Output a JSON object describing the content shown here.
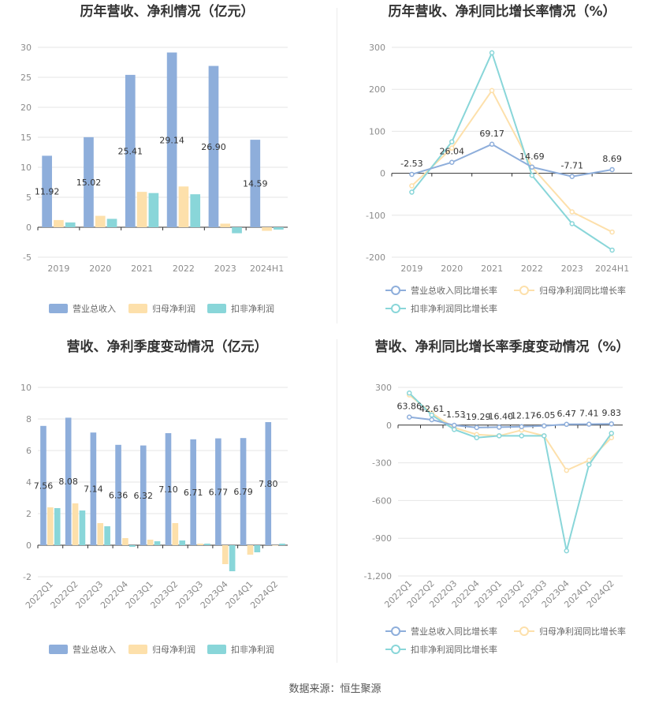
{
  "colors": {
    "revenue": "#8eaedb",
    "net_profit": "#fde0ab",
    "deducted_profit": "#89d6d9",
    "grid": "#e6e6e6",
    "axis": "#333333",
    "title": "#333333",
    "tick": "#8c8c8c"
  },
  "source_text": "数据来源：恒生聚源",
  "chart_data": [
    {
      "type": "bar",
      "title": "历年营收、净利情况（亿元）",
      "categories": [
        "2019",
        "2020",
        "2021",
        "2022",
        "2023",
        "2024H1"
      ],
      "ylim": [
        -5,
        30
      ],
      "yticks": [
        -5,
        0,
        5,
        10,
        15,
        20,
        25,
        30
      ],
      "series": [
        {
          "name": "营业总收入",
          "values": [
            11.92,
            15.02,
            25.41,
            29.14,
            26.9,
            14.59
          ],
          "labels": [
            "11.92",
            "15.02",
            "25.41",
            "29.14",
            "26.90",
            "14.59"
          ]
        },
        {
          "name": "归母净利润",
          "values": [
            1.2,
            1.9,
            5.9,
            6.8,
            0.6,
            -0.6
          ]
        },
        {
          "name": "扣非净利润",
          "values": [
            0.8,
            1.4,
            5.7,
            5.5,
            -1.0,
            -0.4
          ]
        }
      ],
      "legend": "bottom"
    },
    {
      "type": "line",
      "title": "历年营收、净利同比增长率情况（%）",
      "categories": [
        "2019",
        "2020",
        "2021",
        "2022",
        "2023",
        "2024H1"
      ],
      "ylim": [
        -200,
        300
      ],
      "yticks": [
        -200,
        -100,
        0,
        100,
        200,
        300
      ],
      "series": [
        {
          "name": "营业总收入同比增长率",
          "values": [
            -2.53,
            26.04,
            69.17,
            14.69,
            -7.71,
            8.69
          ],
          "labels": [
            "-2.53",
            "26.04",
            "69.17",
            "14.69",
            "-7.71",
            "8.69"
          ]
        },
        {
          "name": "归母净利润同比增长率",
          "values": [
            -30,
            60,
            197,
            15,
            -92,
            -140
          ]
        },
        {
          "name": "扣非净利润同比增长率",
          "values": [
            -45,
            75,
            287,
            -5,
            -120,
            -183
          ]
        }
      ],
      "legend": "bottom"
    },
    {
      "type": "bar",
      "title": "营收、净利季度变动情况（亿元）",
      "categories": [
        "2022Q1",
        "2022Q2",
        "2022Q3",
        "2022Q4",
        "2023Q1",
        "2023Q2",
        "2023Q3",
        "2023Q4",
        "2024Q1",
        "2024Q2"
      ],
      "ylim": [
        -2,
        10
      ],
      "yticks": [
        -2,
        0,
        2,
        4,
        6,
        8,
        10
      ],
      "series": [
        {
          "name": "营业总收入",
          "values": [
            7.56,
            8.08,
            7.14,
            6.36,
            6.32,
            7.1,
            6.71,
            6.77,
            6.79,
            7.8
          ],
          "labels": [
            "7.56",
            "8.08",
            "7.14",
            "6.36",
            "6.32",
            "7.10",
            "6.71",
            "6.77",
            "6.79",
            "7.80"
          ]
        },
        {
          "name": "归母净利润",
          "values": [
            2.4,
            2.65,
            1.4,
            0.45,
            0.35,
            1.4,
            0.1,
            -1.2,
            -0.6,
            0.0
          ]
        },
        {
          "name": "扣非净利润",
          "values": [
            2.35,
            2.2,
            1.2,
            -0.1,
            0.25,
            0.3,
            0.1,
            -1.65,
            -0.45,
            0.1
          ]
        }
      ],
      "legend": "bottom"
    },
    {
      "type": "line",
      "title": "营收、净利同比增长率季度变动情况（%）",
      "categories": [
        "2022Q1",
        "2022Q2",
        "2022Q3",
        "2022Q4",
        "2023Q1",
        "2023Q2",
        "2023Q3",
        "2023Q4",
        "2024Q1",
        "2024Q2"
      ],
      "ylim": [
        -1200,
        300
      ],
      "yticks": [
        -1200,
        -900,
        -600,
        -300,
        0,
        300
      ],
      "series": [
        {
          "name": "营业总收入同比增长率",
          "values": [
            63.86,
            42.61,
            -1.53,
            -19.29,
            -16.4,
            -12.17,
            -6.05,
            6.47,
            7.41,
            9.83
          ],
          "labels": [
            "63.86",
            "42.61",
            "-1.53",
            "-19.29",
            "-16.40",
            "-12.17",
            "-6.05",
            "6.47",
            "7.41",
            "9.83"
          ]
        },
        {
          "name": "归母净利润同比增长率",
          "values": [
            240,
            95,
            -20,
            -75,
            -85,
            -40,
            -85,
            -360,
            -280,
            -100
          ]
        },
        {
          "name": "扣非净利润同比增长率",
          "values": [
            255,
            80,
            -35,
            -100,
            -85,
            -85,
            -85,
            -1000,
            -315,
            -65
          ]
        }
      ],
      "legend": "bottom"
    }
  ]
}
